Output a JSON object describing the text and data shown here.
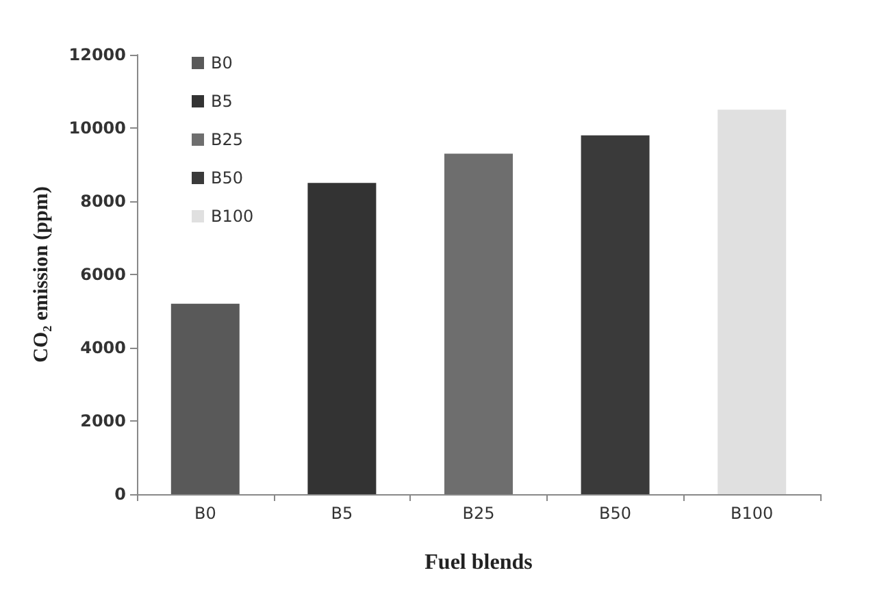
{
  "chart_data": {
    "type": "bar",
    "xlabel": "Fuel blends",
    "ylabel": "CO₂ emission (ppm)",
    "categories": [
      "B0",
      "B5",
      "B25",
      "B50",
      "B100"
    ],
    "stacked": true,
    "series": [
      {
        "name": "B0",
        "color": "#595959",
        "values": [
          5200,
          null,
          null,
          null,
          null
        ]
      },
      {
        "name": "B5",
        "color": "#333333",
        "values": [
          null,
          8500,
          null,
          null,
          null
        ]
      },
      {
        "name": "B25",
        "color": "#6e6e6e",
        "values": [
          null,
          null,
          9300,
          null,
          null
        ]
      },
      {
        "name": "B50",
        "color": "#3a3a3a",
        "values": [
          null,
          null,
          null,
          9800,
          null
        ]
      },
      {
        "name": "B100",
        "color": "#e0e0e0",
        "values": [
          null,
          null,
          null,
          null,
          10500
        ]
      }
    ],
    "ylim": [
      0,
      12000
    ],
    "yticks": [
      0,
      2000,
      4000,
      6000,
      8000,
      10000,
      12000
    ],
    "legend": "top left"
  }
}
